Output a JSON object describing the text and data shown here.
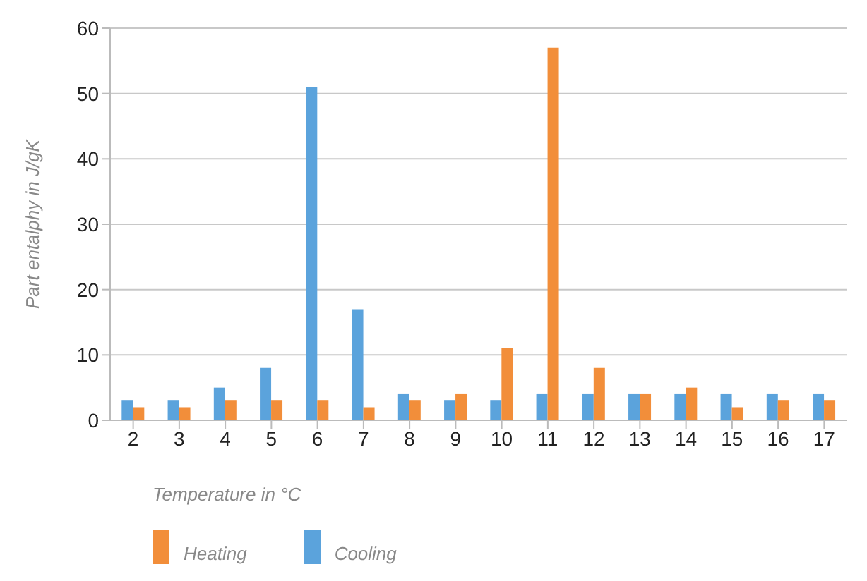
{
  "chart_data": {
    "type": "bar",
    "xlabel": "Temperature in °C",
    "ylabel": "Part entalphy in J/gK",
    "categories": [
      "2",
      "3",
      "4",
      "5",
      "6",
      "7",
      "8",
      "9",
      "10",
      "11",
      "12",
      "13",
      "14",
      "15",
      "16",
      "17"
    ],
    "series": [
      {
        "name": "Cooling",
        "color": "#5ba3dc",
        "values": [
          3,
          3,
          5,
          8,
          51,
          17,
          4,
          3,
          3,
          4,
          4,
          4,
          4,
          4,
          4,
          4
        ]
      },
      {
        "name": "Heating",
        "color": "#f28e3a",
        "values": [
          2,
          2,
          3,
          3,
          3,
          2,
          3,
          4,
          11,
          57,
          8,
          4,
          5,
          2,
          3,
          3
        ]
      }
    ],
    "ylim": [
      0,
      60
    ],
    "yticks": [
      0,
      10,
      20,
      30,
      40,
      50,
      60
    ],
    "grid": "y",
    "legend": "bottom"
  }
}
